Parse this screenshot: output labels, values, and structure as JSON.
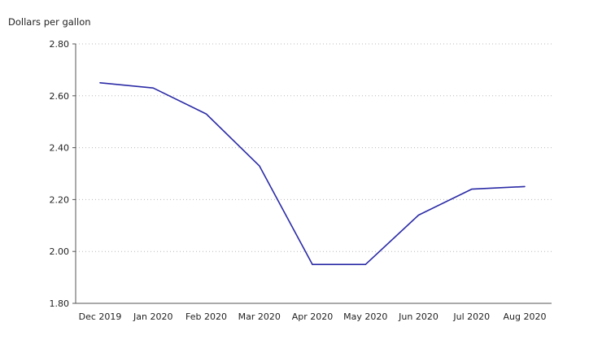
{
  "chart_data": {
    "type": "line",
    "title": "",
    "ylabel": "Dollars per gallon",
    "xlabel": "",
    "categories": [
      "Dec 2019",
      "Jan 2020",
      "Feb 2020",
      "Mar 2020",
      "Apr 2020",
      "May 2020",
      "Jun 2020",
      "Jul 2020",
      "Aug 2020"
    ],
    "series": [
      {
        "values": [
          2.65,
          2.63,
          2.53,
          2.33,
          1.95,
          1.95,
          2.14,
          2.24,
          2.25
        ],
        "color": "#2a2aa6"
      }
    ],
    "ylim": [
      1.8,
      2.8
    ],
    "yticks": [
      "1.80",
      "2.00",
      "2.20",
      "2.40",
      "2.60",
      "2.80"
    ],
    "grid": true,
    "legend": "none"
  }
}
